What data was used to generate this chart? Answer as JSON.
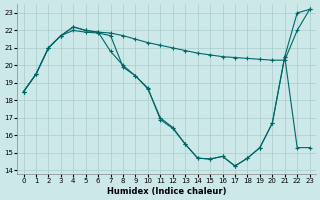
{
  "xlabel": "Humidex (Indice chaleur)",
  "bg_color": "#cce8e8",
  "grid_color": "#aacccc",
  "line_color": "#006666",
  "xlim": [
    -0.5,
    23.5
  ],
  "ylim": [
    13.8,
    23.5
  ],
  "yticks": [
    14,
    15,
    16,
    17,
    18,
    19,
    20,
    21,
    22,
    23
  ],
  "xticks": [
    0,
    1,
    2,
    3,
    4,
    5,
    6,
    7,
    8,
    9,
    10,
    11,
    12,
    13,
    14,
    15,
    16,
    17,
    18,
    19,
    20,
    21,
    22,
    23
  ],
  "line1_x": [
    0,
    1,
    2,
    3,
    4,
    5,
    6,
    7,
    8,
    9,
    10,
    11,
    12,
    13,
    14,
    15,
    16,
    17,
    18,
    19,
    20,
    21,
    22,
    23
  ],
  "line1_y": [
    18.5,
    19.5,
    21.0,
    21.7,
    22.0,
    21.9,
    21.85,
    21.7,
    19.9,
    19.4,
    18.7,
    16.9,
    16.4,
    15.5,
    14.7,
    14.65,
    14.8,
    14.25,
    14.7,
    15.3,
    16.7,
    20.5,
    23.0,
    23.2
  ],
  "line2_x": [
    0,
    1,
    2,
    3,
    4,
    5,
    6,
    7,
    8,
    9,
    10,
    11,
    12,
    13,
    14,
    15,
    16,
    17,
    18,
    19,
    20,
    21,
    22,
    23
  ],
  "line2_y": [
    18.5,
    19.5,
    21.0,
    21.7,
    22.2,
    22.0,
    21.9,
    21.85,
    21.7,
    21.5,
    21.3,
    21.15,
    21.0,
    20.85,
    20.7,
    20.6,
    20.5,
    20.45,
    20.4,
    20.35,
    20.3,
    20.3,
    22.0,
    23.2
  ],
  "line3_x": [
    0,
    1,
    2,
    3,
    4,
    5,
    6,
    7,
    8,
    9,
    10,
    11,
    12,
    13,
    14,
    15,
    16,
    17,
    18,
    19,
    20,
    21,
    22,
    23
  ],
  "line3_y": [
    18.5,
    19.5,
    21.0,
    21.7,
    22.2,
    22.0,
    21.9,
    20.8,
    20.0,
    19.4,
    18.65,
    17.0,
    16.45,
    15.5,
    14.7,
    14.65,
    14.8,
    14.25,
    14.7,
    15.3,
    16.7,
    20.5,
    15.3,
    15.3
  ]
}
